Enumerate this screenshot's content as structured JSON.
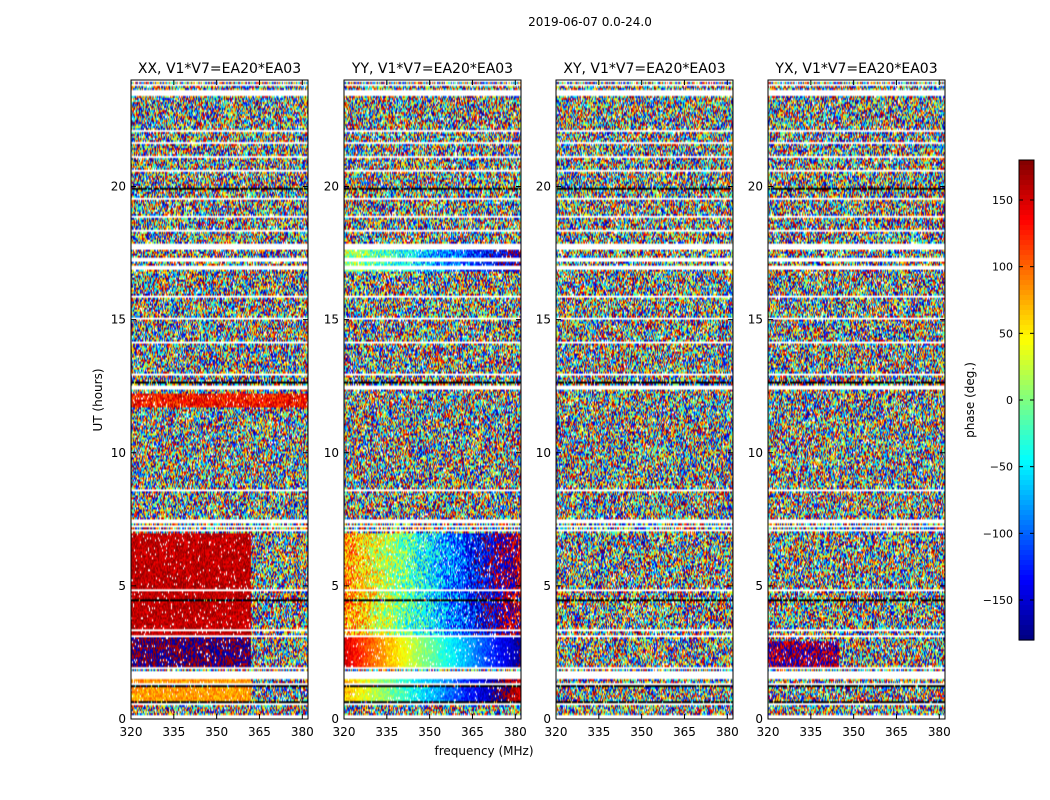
{
  "figure_title": "2019-06-07 0.0-24.0",
  "colors": {
    "background": "#ffffff",
    "frame": "#000000",
    "flag_row": "#ffffff",
    "dark_row": "#000000"
  },
  "chart_data": {
    "type": "heatmap",
    "colormap": "jet",
    "shared_ylabel": "UT (hours)",
    "shared_xlabel": "frequency (MHz)",
    "xlim": [
      320,
      382
    ],
    "ylim": [
      0,
      24
    ],
    "xticks": [
      320,
      335,
      350,
      365,
      380
    ],
    "yticks": [
      0,
      5,
      10,
      15,
      20
    ],
    "colorbar": {
      "label": "phase (deg.)",
      "range": [
        -180,
        180
      ],
      "ticks": [
        150,
        100,
        50,
        0,
        -50,
        -100,
        -150
      ],
      "tick_labels": [
        "150",
        "100",
        "50",
        "0",
        "−50",
        "−100",
        "−150"
      ]
    },
    "panels": [
      {
        "title": "XX, V1*V7=EA20*EA03",
        "coherent_regions": [
          {
            "t0": 3.1,
            "t1": 7.0,
            "f1": 362,
            "phase": 158,
            "spread": 22
          },
          {
            "t0": 1.9,
            "t1": 3.1,
            "f1": 362,
            "phase": -178,
            "spread": 28
          },
          {
            "t0": 0.7,
            "t1": 1.5,
            "f1": 362,
            "phase": 80,
            "spread": 25
          },
          {
            "t0": 11.7,
            "t1": 12.2,
            "f1": 382,
            "phase": 130,
            "spread": 40
          }
        ]
      },
      {
        "title": "YY, V1*V7=EA20*EA03",
        "coherent_regions": [
          {
            "t0": 1.9,
            "t1": 3.1,
            "phase_at_f0": 150,
            "phase_slope": -5.2,
            "spread": 18
          },
          {
            "t0": 0.7,
            "t1": 1.5,
            "phase_at_f0": 70,
            "phase_slope": -4.5,
            "spread": 25
          },
          {
            "t0": 3.1,
            "t1": 7.0,
            "phase_at_f0": 90,
            "phase_slope": -4.8,
            "spread": 60
          },
          {
            "t0": 16.8,
            "t1": 17.6,
            "phase_at_f0": 20,
            "phase_slope": -3.0,
            "spread": 55
          }
        ]
      },
      {
        "title": "XY, V1*V7=EA20*EA03",
        "coherent_regions": []
      },
      {
        "title": "YX, V1*V7=EA20*EA03",
        "coherent_regions": [
          {
            "t0": 1.9,
            "t1": 2.9,
            "f1": 345,
            "phase": 175,
            "spread": 60
          }
        ]
      }
    ],
    "flagged_time_ranges": [
      [
        0.03,
        0.15
      ],
      [
        0.55,
        0.62
      ],
      [
        1.3,
        1.34
      ],
      [
        1.5,
        1.78
      ],
      [
        1.88,
        1.93
      ],
      [
        3.1,
        3.16
      ],
      [
        3.3,
        3.36
      ],
      [
        4.8,
        4.84
      ],
      [
        6.35,
        6.38
      ],
      [
        7.02,
        7.12
      ],
      [
        7.2,
        7.25
      ],
      [
        7.35,
        7.5
      ],
      [
        8.0,
        8.05
      ],
      [
        8.55,
        8.6
      ],
      [
        9.5,
        9.53
      ],
      [
        10.5,
        10.53
      ],
      [
        12.4,
        12.55
      ],
      [
        12.9,
        12.95
      ],
      [
        14.1,
        14.14
      ],
      [
        14.6,
        14.64
      ],
      [
        15.0,
        15.04
      ],
      [
        15.85,
        15.9
      ],
      [
        16.55,
        16.6
      ],
      [
        16.9,
        17.0
      ],
      [
        17.2,
        17.3
      ],
      [
        17.65,
        17.85
      ],
      [
        18.3,
        18.35
      ],
      [
        18.85,
        18.9
      ],
      [
        19.5,
        19.55
      ],
      [
        20.55,
        20.6
      ],
      [
        21.1,
        21.15
      ],
      [
        21.6,
        21.65
      ],
      [
        22.05,
        22.1
      ],
      [
        22.55,
        22.6
      ],
      [
        23.4,
        23.6
      ],
      [
        23.75,
        23.85
      ],
      [
        23.92,
        23.98
      ]
    ],
    "dark_time_ranges": [
      [
        19.85,
        19.98
      ],
      [
        12.62,
        12.68
      ],
      [
        7.06,
        7.1
      ],
      [
        6.9,
        6.93
      ],
      [
        5.85,
        5.88
      ],
      [
        4.45,
        4.48
      ],
      [
        3.58,
        3.6
      ],
      [
        0.62,
        0.66
      ],
      [
        1.2,
        1.24
      ],
      [
        0.95,
        0.97
      ]
    ]
  }
}
